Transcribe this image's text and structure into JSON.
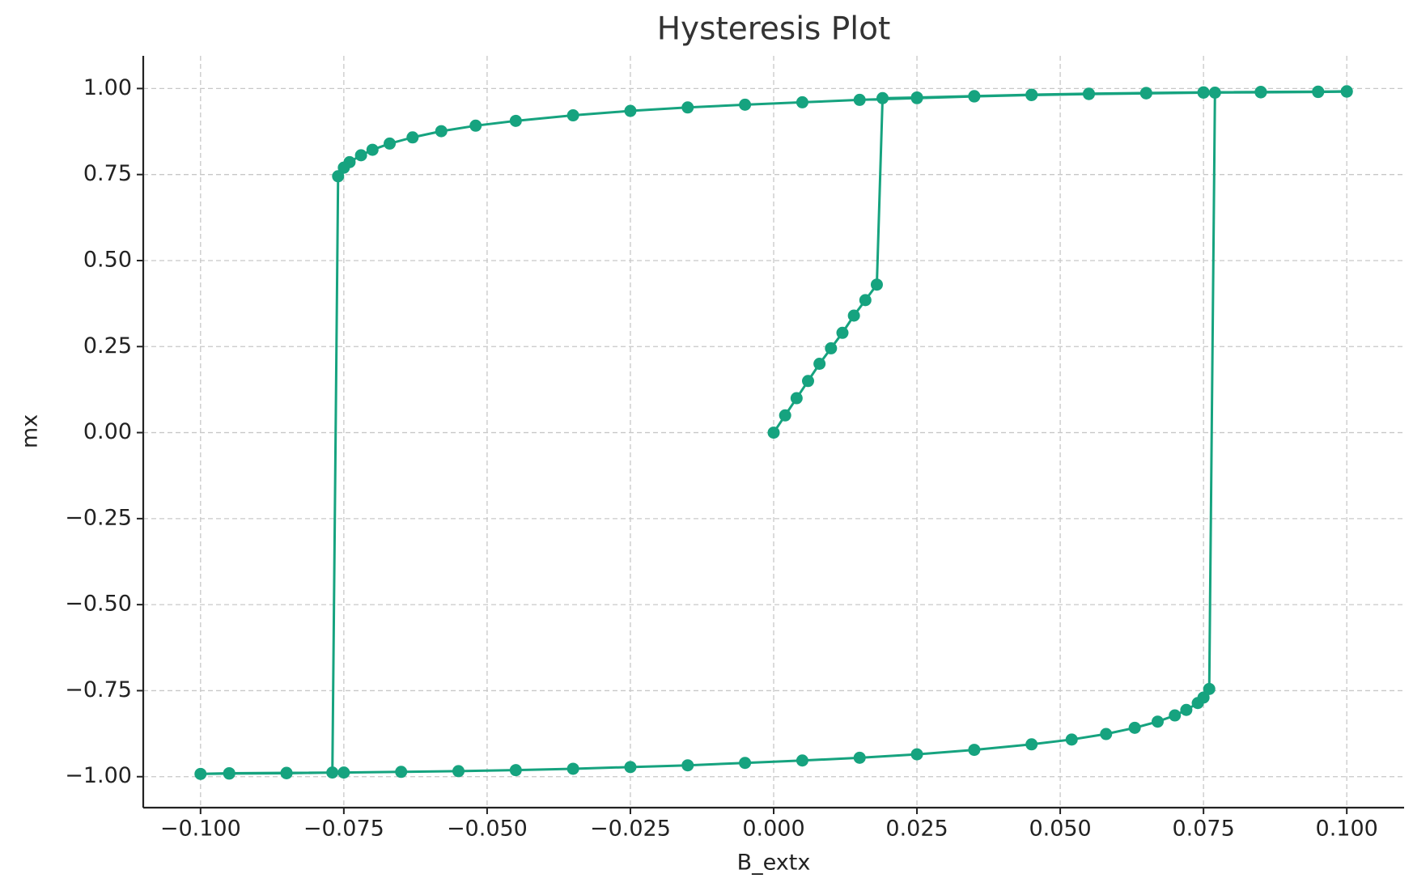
{
  "chart_data": {
    "type": "line",
    "title": "Hysteresis Plot",
    "x_label": "B_extx",
    "y_label": "mx",
    "color": "#16a37f",
    "grid": true,
    "xlim": [
      -0.11,
      0.11
    ],
    "ylim": [
      -1.09,
      1.095
    ],
    "xticks": [
      {
        "value": -0.1,
        "label": "−0.100"
      },
      {
        "value": -0.075,
        "label": "−0.075"
      },
      {
        "value": -0.05,
        "label": "−0.050"
      },
      {
        "value": -0.025,
        "label": "−0.025"
      },
      {
        "value": 0,
        "label": "0.000"
      },
      {
        "value": 0.025,
        "label": "0.025"
      },
      {
        "value": 0.05,
        "label": "0.050"
      },
      {
        "value": 0.075,
        "label": "0.075"
      },
      {
        "value": 0.1,
        "label": "0.100"
      }
    ],
    "yticks": [
      {
        "value": -1,
        "label": "−1.00"
      },
      {
        "value": -0.75,
        "label": "−0.75"
      },
      {
        "value": -0.5,
        "label": "−0.50"
      },
      {
        "value": -0.25,
        "label": "−0.25"
      },
      {
        "value": 0,
        "label": "0.00"
      },
      {
        "value": 0.25,
        "label": "0.25"
      },
      {
        "value": 0.5,
        "label": "0.50"
      },
      {
        "value": 0.75,
        "label": "0.75"
      },
      {
        "value": 1,
        "label": "1.00"
      }
    ],
    "x": [
      0,
      0.002,
      0.004,
      0.006,
      0.008,
      0.01,
      0.012,
      0.014,
      0.016,
      0.018,
      0.019,
      0.025,
      0.035,
      0.045,
      0.055,
      0.065,
      0.075,
      0.085,
      0.1,
      0.095,
      0.085,
      0.075,
      0.065,
      0.055,
      0.045,
      0.035,
      0.025,
      0.015,
      0.005,
      -0.005,
      -0.015,
      -0.025,
      -0.035,
      -0.045,
      -0.052,
      -0.058,
      -0.063,
      -0.067,
      -0.07,
      -0.072,
      -0.074,
      -0.075,
      -0.076,
      -0.077,
      -0.085,
      -0.095,
      -0.1,
      -0.095,
      -0.085,
      -0.075,
      -0.065,
      -0.055,
      -0.045,
      -0.035,
      -0.025,
      -0.015,
      -0.005,
      0.005,
      0.015,
      0.025,
      0.035,
      0.045,
      0.052,
      0.058,
      0.063,
      0.067,
      0.07,
      0.072,
      0.074,
      0.075,
      0.076,
      0.077,
      0.085,
      0.095,
      0.1
    ],
    "values": [
      0,
      0.05,
      0.1,
      0.15,
      0.2,
      0.245,
      0.29,
      0.34,
      0.385,
      0.43,
      0.972,
      0.974,
      0.978,
      0.982,
      0.985,
      0.987,
      0.989,
      0.99,
      0.991,
      0.99,
      0.989,
      0.988,
      0.986,
      0.984,
      0.981,
      0.977,
      0.972,
      0.967,
      0.96,
      0.953,
      0.945,
      0.935,
      0.922,
      0.906,
      0.892,
      0.876,
      0.858,
      0.84,
      0.822,
      0.806,
      0.786,
      0.77,
      0.745,
      -0.988,
      -0.99,
      -0.991,
      -0.992,
      -0.99,
      -0.989,
      -0.988,
      -0.986,
      -0.984,
      -0.981,
      -0.977,
      -0.972,
      -0.967,
      -0.96,
      -0.953,
      -0.945,
      -0.935,
      -0.922,
      -0.906,
      -0.892,
      -0.876,
      -0.858,
      -0.84,
      -0.822,
      -0.806,
      -0.786,
      -0.77,
      -0.745,
      0.988,
      0.99,
      0.991,
      0.992
    ]
  }
}
